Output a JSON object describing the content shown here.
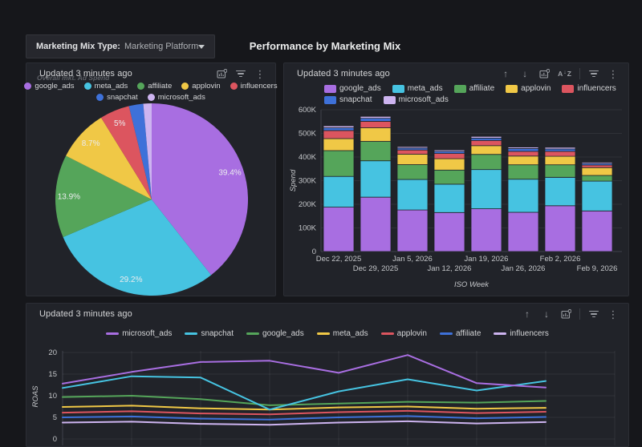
{
  "page": {
    "title": "Performance by Marketing Mix"
  },
  "toolbar": {
    "mix_type_label": "Marketing Mix Type:",
    "mix_type_value": "Marketing Platform"
  },
  "panels": {
    "pie": {
      "updated": "Updated 3 minutes ago",
      "ghost_title": "Overall mkt. Ad Spend"
    },
    "bar": {
      "updated": "Updated 3 minutes ago"
    },
    "line": {
      "updated": "Updated 3 minutes ago"
    }
  },
  "palette": [
    "#a86ee1",
    "#46c3e1",
    "#55a55a",
    "#f0c846",
    "#dc555f",
    "#3e71d9",
    "#cdb4f0"
  ],
  "chart_data": [
    {
      "type": "pie",
      "labels": [
        "google_ads",
        "meta_ads",
        "affiliate",
        "applovin",
        "influencers",
        "snapchat",
        "microsoft_ads"
      ],
      "values": [
        39.4,
        29.2,
        13.9,
        8.7,
        5.0,
        2.4,
        1.4
      ],
      "slice_labels": [
        "39.4%",
        "29.2%",
        "13.9%",
        "8.7%",
        "5%",
        "",
        ""
      ],
      "colors": [
        "#a86ee1",
        "#46c3e1",
        "#55a55a",
        "#f0c846",
        "#dc555f",
        "#3e71d9",
        "#cdb4f0"
      ],
      "legend_rows": [
        [
          "google_ads",
          "meta_ads",
          "affiliate",
          "applovin",
          "influencers"
        ],
        [
          "snapchat",
          "microsoft_ads"
        ]
      ],
      "legend_position": "top-center"
    },
    {
      "type": "bar",
      "stacked": true,
      "categories": [
        "Dec 22, 2025",
        "Dec 29, 2025",
        "Jan 5, 2026",
        "Jan 12, 2026",
        "Jan 19, 2026",
        "Jan 26, 2026",
        "Feb 2, 2026",
        "Feb 9, 2026"
      ],
      "unit": "K",
      "series": [
        {
          "name": "google_ads",
          "color": "#a86ee1",
          "values": [
            188,
            230,
            176,
            165,
            181,
            166,
            194,
            172
          ]
        },
        {
          "name": "meta_ads",
          "color": "#46c3e1",
          "values": [
            130,
            154,
            129,
            120,
            166,
            140,
            120,
            126
          ]
        },
        {
          "name": "affiliate",
          "color": "#55a55a",
          "values": [
            109,
            82,
            63,
            60,
            64,
            61,
            53,
            24
          ]
        },
        {
          "name": "applovin",
          "color": "#f0c846",
          "values": [
            51,
            58,
            44,
            48,
            37,
            37,
            36,
            33
          ]
        },
        {
          "name": "influencers",
          "color": "#dc555f",
          "values": [
            34,
            27,
            18,
            22,
            22,
            20,
            21,
            11
          ]
        },
        {
          "name": "snapchat",
          "color": "#3e71d9",
          "values": [
            12,
            13,
            8,
            9,
            10,
            12,
            10,
            7
          ]
        },
        {
          "name": "microsoft_ads",
          "color": "#cdb4f0",
          "values": [
            8,
            8,
            6,
            6,
            7,
            6,
            7,
            5
          ]
        }
      ],
      "ylabel": "Spend",
      "xlabel": "ISO Week",
      "yticks": [
        "0",
        "100K",
        "200K",
        "300K",
        "400K",
        "500K",
        "600K"
      ],
      "ylim": [
        0,
        600
      ],
      "legend_rows": [
        [
          "google_ads",
          "meta_ads",
          "affiliate",
          "applovin",
          "influencers"
        ],
        [
          "snapchat",
          "microsoft_ads"
        ]
      ],
      "legend_position": "top-left",
      "grid": true
    },
    {
      "type": "line",
      "x_points": 8,
      "series": [
        {
          "name": "microsoft_ads",
          "color": "#a86ee1",
          "values": [
            12.8,
            15.5,
            17.8,
            18.1,
            15.3,
            19.4,
            12.9,
            11.9
          ]
        },
        {
          "name": "snapchat",
          "color": "#46c3e1",
          "values": [
            11.8,
            14.5,
            14.2,
            6.8,
            11.0,
            13.8,
            11.2,
            13.4
          ]
        },
        {
          "name": "google_ads",
          "color": "#55a55a",
          "values": [
            9.7,
            10.0,
            9.2,
            7.8,
            8.2,
            8.6,
            8.4,
            8.8
          ]
        },
        {
          "name": "meta_ads",
          "color": "#f0c846",
          "values": [
            7.4,
            7.7,
            7.1,
            6.8,
            7.3,
            7.5,
            7.0,
            7.2
          ]
        },
        {
          "name": "applovin",
          "color": "#dc555f",
          "values": [
            6.1,
            6.4,
            5.9,
            5.7,
            6.2,
            6.5,
            6.0,
            6.3
          ]
        },
        {
          "name": "affiliate",
          "color": "#3e71d9",
          "values": [
            5.0,
            5.2,
            4.7,
            4.5,
            5.0,
            5.3,
            4.8,
            5.1
          ]
        },
        {
          "name": "influencers",
          "color": "#cdb4f0",
          "values": [
            3.8,
            4.0,
            3.5,
            3.3,
            3.8,
            4.1,
            3.6,
            3.9
          ]
        }
      ],
      "ylabel": "ROAS",
      "yticks": [
        20,
        15,
        10,
        5,
        0
      ],
      "ylim_visible_top": 20,
      "legend_position": "top-center",
      "grid": true
    }
  ]
}
